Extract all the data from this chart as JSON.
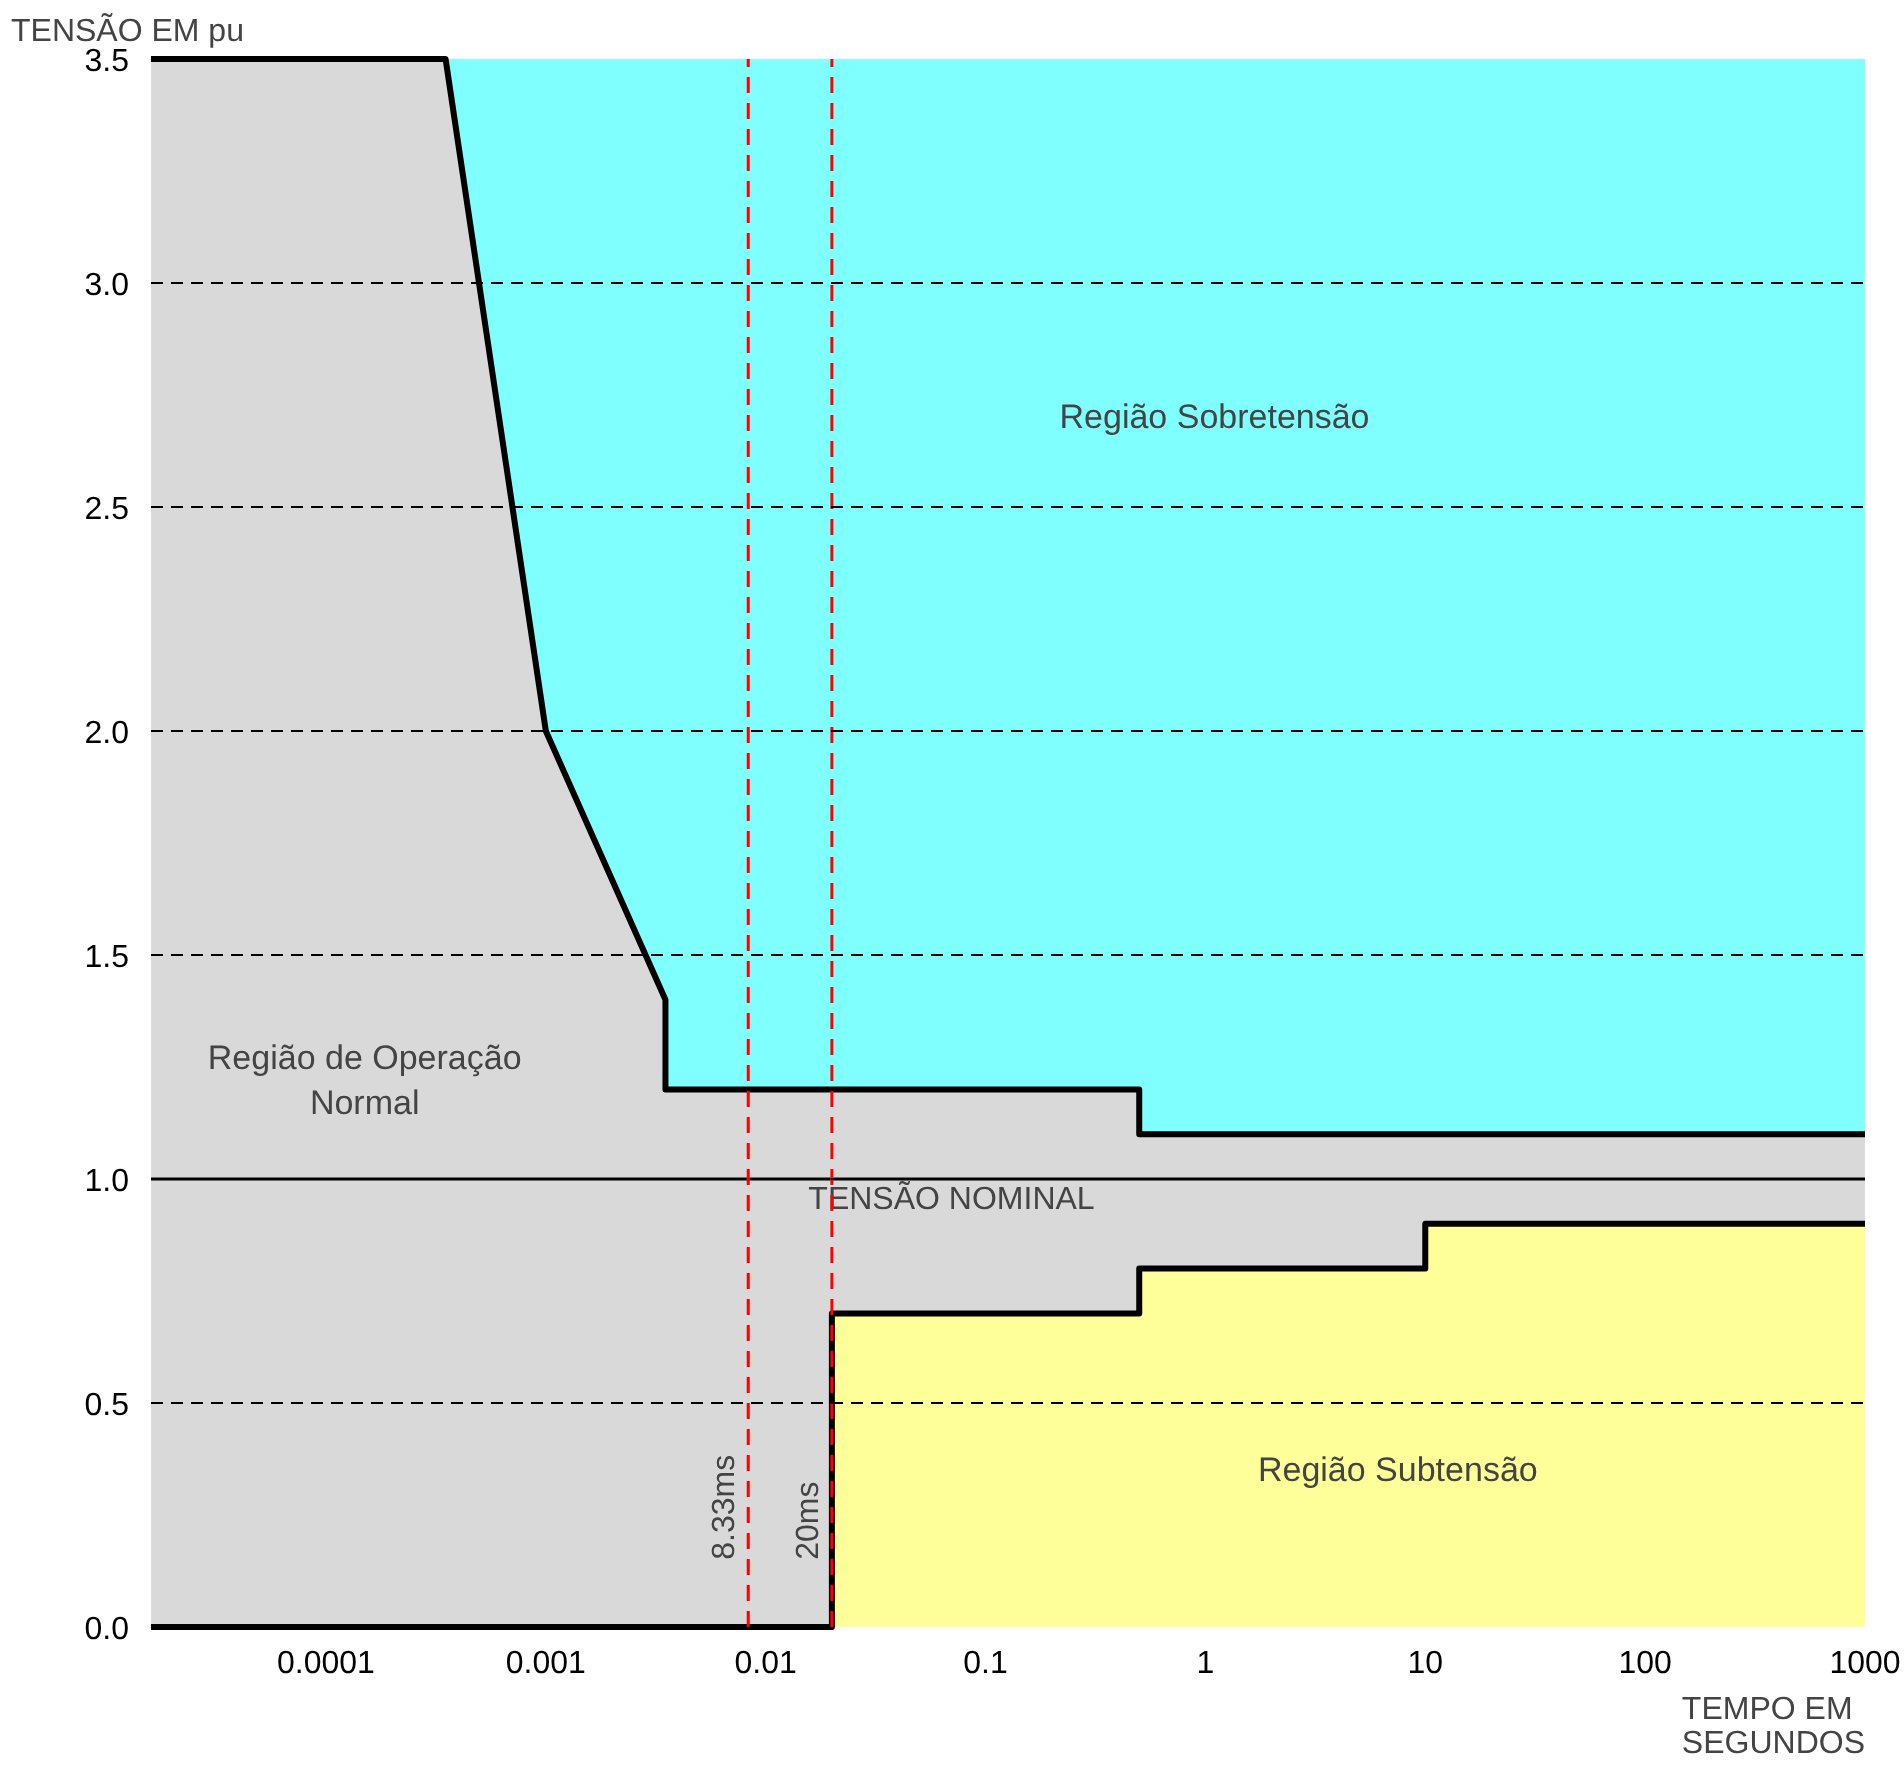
{
  "chart_data": {
    "type": "area",
    "stacked": true,
    "xlabel": "TEMPO EM\nSEGUNDOS",
    "ylabel": "TENSÃO EM pu",
    "log": "x",
    "xlim": [
      1.6e-05,
      1000
    ],
    "ylim": [
      0,
      3.5
    ],
    "xticks": [
      {
        "value": 0.0001,
        "label": "0.0001"
      },
      {
        "value": 0.001,
        "label": "0.001"
      },
      {
        "value": 0.01,
        "label": "0.01"
      },
      {
        "value": 0.1,
        "label": "0.1"
      },
      {
        "value": 1,
        "label": "1"
      },
      {
        "value": 10,
        "label": "10"
      },
      {
        "value": 100,
        "label": "100"
      },
      {
        "value": 1000,
        "label": "1000"
      }
    ],
    "yticks": [
      {
        "value": 0,
        "label": "0.0"
      },
      {
        "value": 0.5,
        "label": "0.5"
      },
      {
        "value": 1,
        "label": "1.0"
      },
      {
        "value": 1.5,
        "label": "1.5"
      },
      {
        "value": 2,
        "label": "2.0"
      },
      {
        "value": 2.5,
        "label": "2.5"
      },
      {
        "value": 3,
        "label": "3.0"
      },
      {
        "value": 3.5,
        "label": "3.5"
      }
    ],
    "grid": "y",
    "x": [
      1.6e-05,
      0.00035,
      0.001,
      0.0035,
      0.0035,
      0.02,
      0.02,
      0.5,
      0.5,
      10,
      10,
      1000
    ],
    "series": [
      {
        "color": "#ffff99",
        "values": [
          0,
          0,
          0,
          0,
          0,
          0,
          0.7,
          0.7,
          0.8,
          0.8,
          0.9,
          0.9
        ]
      },
      {
        "color": "#d9d9d9",
        "values": [
          3.5,
          3.5,
          2.0,
          1.4,
          1.2,
          1.2,
          0.5,
          0.5,
          0.3,
          0.3,
          0.2,
          0.2
        ]
      },
      {
        "color": "#80ffff",
        "values": [
          0,
          0,
          1.5,
          2.1,
          2.3,
          2.3,
          2.3,
          2.3,
          2.4,
          2.4,
          2.4,
          2.4
        ]
      }
    ],
    "ref_lines": [
      {
        "axis": "y",
        "value": 1.0,
        "label": "TENSÃO NOMINAL",
        "color": "#000000",
        "line_style": "solid"
      },
      {
        "axis": "x",
        "value": 0.00833,
        "label": "8.33ms",
        "color": "#ff0000",
        "line_style": "dashed"
      },
      {
        "axis": "x",
        "value": 0.02,
        "label": "20ms",
        "color": "#ff0000",
        "line_style": "dashed"
      }
    ],
    "annotations": [
      "Região Sobretensão",
      "Região de Operação\nNormal",
      "Região Subtensão"
    ]
  }
}
